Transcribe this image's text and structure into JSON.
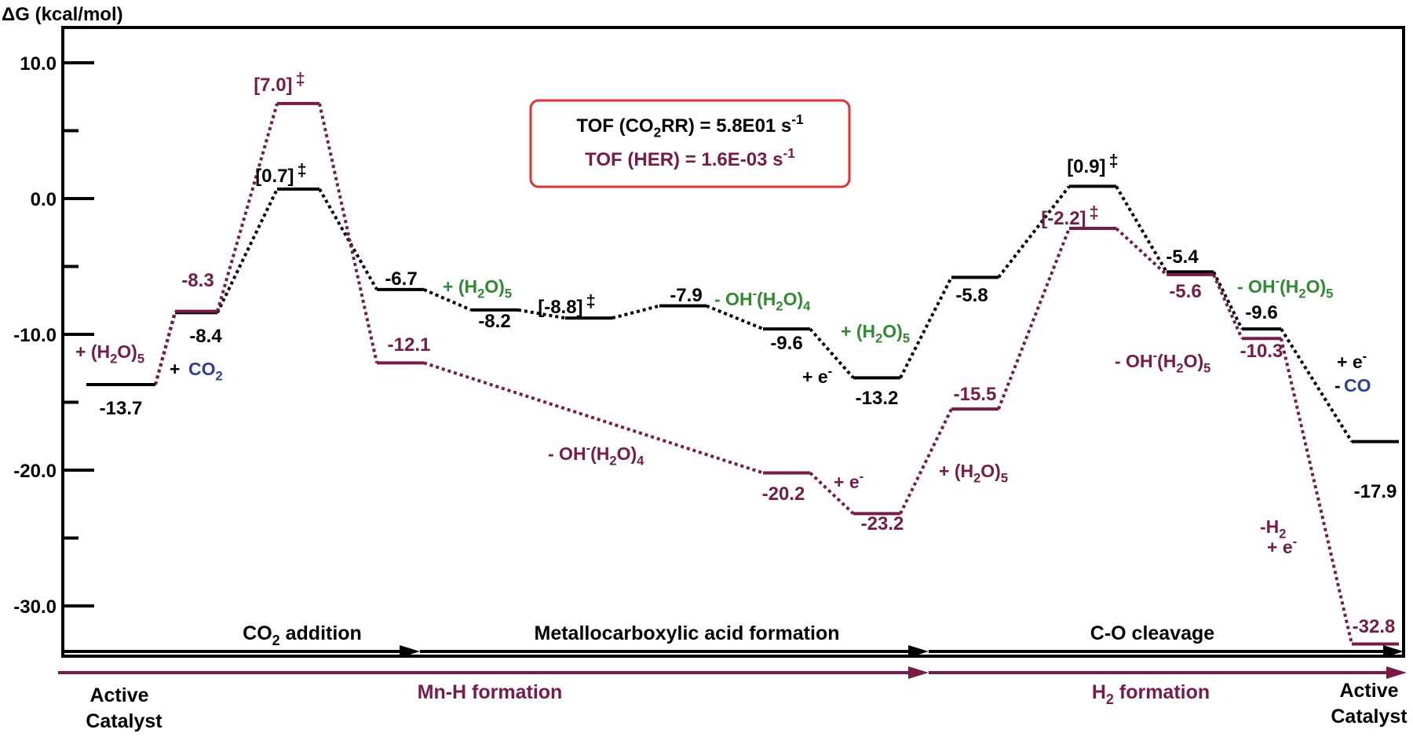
{
  "chart_data": {
    "type": "line",
    "title": "",
    "ylabel": "ΔG (kcal/mol)",
    "ylim": [
      -35,
      14
    ],
    "yticks": [
      {
        "value": 10,
        "label": "10.0"
      },
      {
        "value": 0,
        "label": "0.0"
      },
      {
        "value": -10,
        "label": "-10.0"
      },
      {
        "value": -20,
        "label": "-20.0"
      },
      {
        "value": -30,
        "label": "-30.0"
      }
    ],
    "minor_ticks": [
      5,
      -5,
      -15,
      -25
    ],
    "grid": false,
    "tof_box": {
      "line1_prefix": "TOF (CO",
      "line1_sub": "2",
      "line1_mid": "RR) = 5.8E01 s",
      "line1_sup": "-1",
      "line2_prefix": "TOF (HER) = 1.6E-03 s",
      "line2_sup": "-1"
    },
    "series": [
      {
        "id": "co2rr",
        "color": "#000000",
        "points": [
          {
            "x": 1,
            "y": -13.7,
            "label": "-13.7"
          },
          {
            "x": 2,
            "y": -8.4,
            "label": "-8.4"
          },
          {
            "x": 3,
            "y": 0.7,
            "label": "[0.7]",
            "ts": true
          },
          {
            "x": 4,
            "y": -6.7,
            "label": "-6.7"
          },
          {
            "x": 5,
            "y": -8.2,
            "label": "-8.2"
          },
          {
            "x": 6,
            "y": -8.8,
            "label": "[-8.8]",
            "ts": true
          },
          {
            "x": 7,
            "y": -7.9,
            "label": "-7.9"
          },
          {
            "x": 8,
            "y": -9.6,
            "label": "-9.6"
          },
          {
            "x": 9,
            "y": -13.2,
            "label": "-13.2"
          },
          {
            "x": 10,
            "y": -5.8,
            "label": "-5.8"
          },
          {
            "x": 11,
            "y": 0.9,
            "label": "[0.9]",
            "ts": true
          },
          {
            "x": 12,
            "y": -5.4,
            "label": "-5.4"
          },
          {
            "x": 13,
            "y": -9.6,
            "label": "-9.6"
          },
          {
            "x": 14,
            "y": -17.9,
            "label": "-17.9"
          }
        ]
      },
      {
        "id": "her",
        "color": "#7a1a47",
        "points": [
          {
            "x": 1,
            "y": -13.7,
            "label": ""
          },
          {
            "x": 2,
            "y": -8.3,
            "label": "-8.3"
          },
          {
            "x": 3,
            "y": 7.0,
            "label": "[7.0]",
            "ts": true
          },
          {
            "x": 4,
            "y": -12.1,
            "label": "-12.1"
          },
          {
            "x": 8,
            "y": -20.2,
            "label": "-20.2"
          },
          {
            "x": 9,
            "y": -23.2,
            "label": "-23.2"
          },
          {
            "x": 10,
            "y": -15.5,
            "label": "-15.5"
          },
          {
            "x": 11,
            "y": -2.2,
            "label": "[-2.2]",
            "ts": true
          },
          {
            "x": 12,
            "y": -5.6,
            "label": "-5.6"
          },
          {
            "x": 13,
            "y": -10.3,
            "label": "-10.3"
          },
          {
            "x": 14,
            "y": -32.8,
            "label": "-32.8"
          }
        ]
      }
    ],
    "ts_mark": "‡",
    "annotations": [
      {
        "id": "ann-h2o5-1",
        "color": "#7a1a47",
        "parts": [
          [
            "+ (H",
            "n"
          ],
          [
            "2",
            "sub"
          ],
          [
            "O)",
            "n"
          ],
          [
            "5",
            "sub"
          ]
        ]
      },
      {
        "id": "ann-co2-plus",
        "color": "#000000",
        "parts": [
          [
            "+ ",
            "n"
          ]
        ]
      },
      {
        "id": "ann-co2",
        "color": "#2f3f9a",
        "parts": [
          [
            "CO",
            "n"
          ],
          [
            "2",
            "sub"
          ]
        ]
      },
      {
        "id": "ann-h2o5-2",
        "color": "#2e8b2e",
        "parts": [
          [
            "+ (H",
            "n"
          ],
          [
            "2",
            "sub"
          ],
          [
            "O)",
            "n"
          ],
          [
            "5",
            "sub"
          ]
        ]
      },
      {
        "id": "ann-oh-h2o4-1",
        "color": "#2e8b2e",
        "parts": [
          [
            "- OH",
            "n"
          ],
          [
            "-",
            "sup"
          ],
          [
            "(H",
            "n"
          ],
          [
            "2",
            "sub"
          ],
          [
            "O)",
            "n"
          ],
          [
            "4",
            "sub"
          ]
        ]
      },
      {
        "id": "ann-h2o5-3",
        "color": "#2e8b2e",
        "parts": [
          [
            "+ (H",
            "n"
          ],
          [
            "2",
            "sub"
          ],
          [
            "O)",
            "n"
          ],
          [
            "5",
            "sub"
          ]
        ]
      },
      {
        "id": "ann-e-1",
        "color": "#000000",
        "parts": [
          [
            "+ e",
            "n"
          ],
          [
            "-",
            "sup"
          ]
        ]
      },
      {
        "id": "ann-oh-h2o4-2",
        "color": "#7a1a47",
        "parts": [
          [
            "- OH",
            "n"
          ],
          [
            "-",
            "sup"
          ],
          [
            "(H",
            "n"
          ],
          [
            "2",
            "sub"
          ],
          [
            "O)",
            "n"
          ],
          [
            "4",
            "sub"
          ]
        ]
      },
      {
        "id": "ann-e-2",
        "color": "#7a1a47",
        "parts": [
          [
            "+ e",
            "n"
          ],
          [
            "-",
            "sup"
          ]
        ]
      },
      {
        "id": "ann-h2o5-4",
        "color": "#7a1a47",
        "parts": [
          [
            "+ (H",
            "n"
          ],
          [
            "2",
            "sub"
          ],
          [
            "O)",
            "n"
          ],
          [
            "5",
            "sub"
          ]
        ]
      },
      {
        "id": "ann-oh-h2o5-1",
        "color": "#2e8b2e",
        "parts": [
          [
            "- OH",
            "n"
          ],
          [
            "-",
            "sup"
          ],
          [
            "(H",
            "n"
          ],
          [
            "2",
            "sub"
          ],
          [
            "O)",
            "n"
          ],
          [
            "5",
            "sub"
          ]
        ]
      },
      {
        "id": "ann-oh-h2o5-2",
        "color": "#7a1a47",
        "parts": [
          [
            "- OH",
            "n"
          ],
          [
            "-",
            "sup"
          ],
          [
            "(H",
            "n"
          ],
          [
            "2",
            "sub"
          ],
          [
            "O)",
            "n"
          ],
          [
            "5",
            "sub"
          ]
        ]
      },
      {
        "id": "ann-e-3",
        "color": "#000000",
        "parts": [
          [
            "+ e",
            "n"
          ],
          [
            "-",
            "sup"
          ]
        ]
      },
      {
        "id": "ann-co-minus",
        "color": "#000000",
        "parts": [
          [
            "- ",
            "n"
          ]
        ]
      },
      {
        "id": "ann-co",
        "color": "#2f3f9a",
        "parts": [
          [
            "CO",
            "n"
          ]
        ]
      },
      {
        "id": "ann-h2",
        "color": "#7a1a47",
        "parts": [
          [
            "-H",
            "n"
          ],
          [
            "2",
            "sub"
          ]
        ]
      },
      {
        "id": "ann-e-4",
        "color": "#7a1a47",
        "parts": [
          [
            "+ e",
            "n"
          ],
          [
            "-",
            "sup"
          ]
        ]
      }
    ],
    "stages_top": [
      {
        "id": "stage-co2-addition",
        "parts": [
          [
            "CO",
            "n"
          ],
          [
            "2",
            "sub"
          ],
          [
            " addition",
            "n"
          ]
        ]
      },
      {
        "id": "stage-metallocarboxylic",
        "parts": [
          [
            "Metallocarboxylic acid formation",
            "n"
          ]
        ]
      },
      {
        "id": "stage-co-cleavage",
        "parts": [
          [
            "C-O cleavage",
            "n"
          ]
        ]
      }
    ],
    "stages_bottom": [
      {
        "id": "stage-mnh-formation",
        "parts": [
          [
            "Mn-H formation",
            "n"
          ]
        ]
      },
      {
        "id": "stage-h2-formation",
        "parts": [
          [
            "H",
            "n"
          ],
          [
            "2",
            "sub"
          ],
          [
            " formation",
            "n"
          ]
        ]
      }
    ],
    "endpoints": {
      "left_line1": "Active",
      "left_line2": "Catalyst",
      "right_line1": "Active",
      "right_line2": "Catalyst"
    }
  }
}
